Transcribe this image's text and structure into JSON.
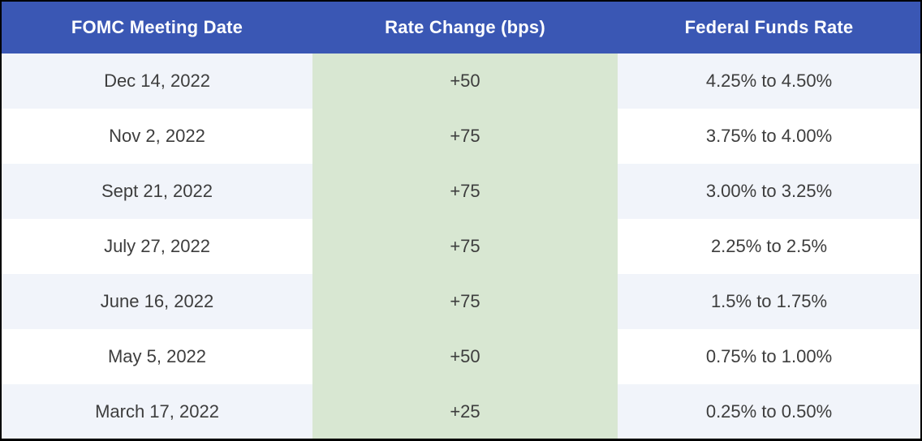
{
  "chart_data": {
    "type": "table",
    "columns": [
      "FOMC Meeting Date",
      "Rate Change (bps)",
      "Federal Funds Rate"
    ],
    "rows": [
      [
        "Dec 14, 2022",
        "+50",
        "4.25% to 4.50%"
      ],
      [
        "Nov 2, 2022",
        "+75",
        "3.75% to 4.00%"
      ],
      [
        "Sept 21, 2022",
        "+75",
        "3.00% to 3.25%"
      ],
      [
        "July 27, 2022",
        "+75",
        "2.25% to 2.5%"
      ],
      [
        "June 16, 2022",
        "+75",
        "1.5% to 1.75%"
      ],
      [
        "May 5, 2022",
        "+50",
        "0.75% to 1.00%"
      ],
      [
        "March 17, 2022",
        "+25",
        "0.25% to 0.50%"
      ]
    ],
    "rate_change_bps_numeric": [
      50,
      75,
      75,
      75,
      75,
      50,
      25
    ],
    "layout_hints": {
      "header_position": "top",
      "zebra_striping": true,
      "highlighted_column": "Rate Change (bps)"
    }
  },
  "colors": {
    "header_bg": "#3a57b4",
    "header_text": "#ffffff",
    "row_bg": "#ffffff",
    "row_alt_bg": "#f1f4fa",
    "change_col_bg": "#d8e7d2",
    "body_text": "#3d3d3d",
    "frame": "#000000"
  }
}
